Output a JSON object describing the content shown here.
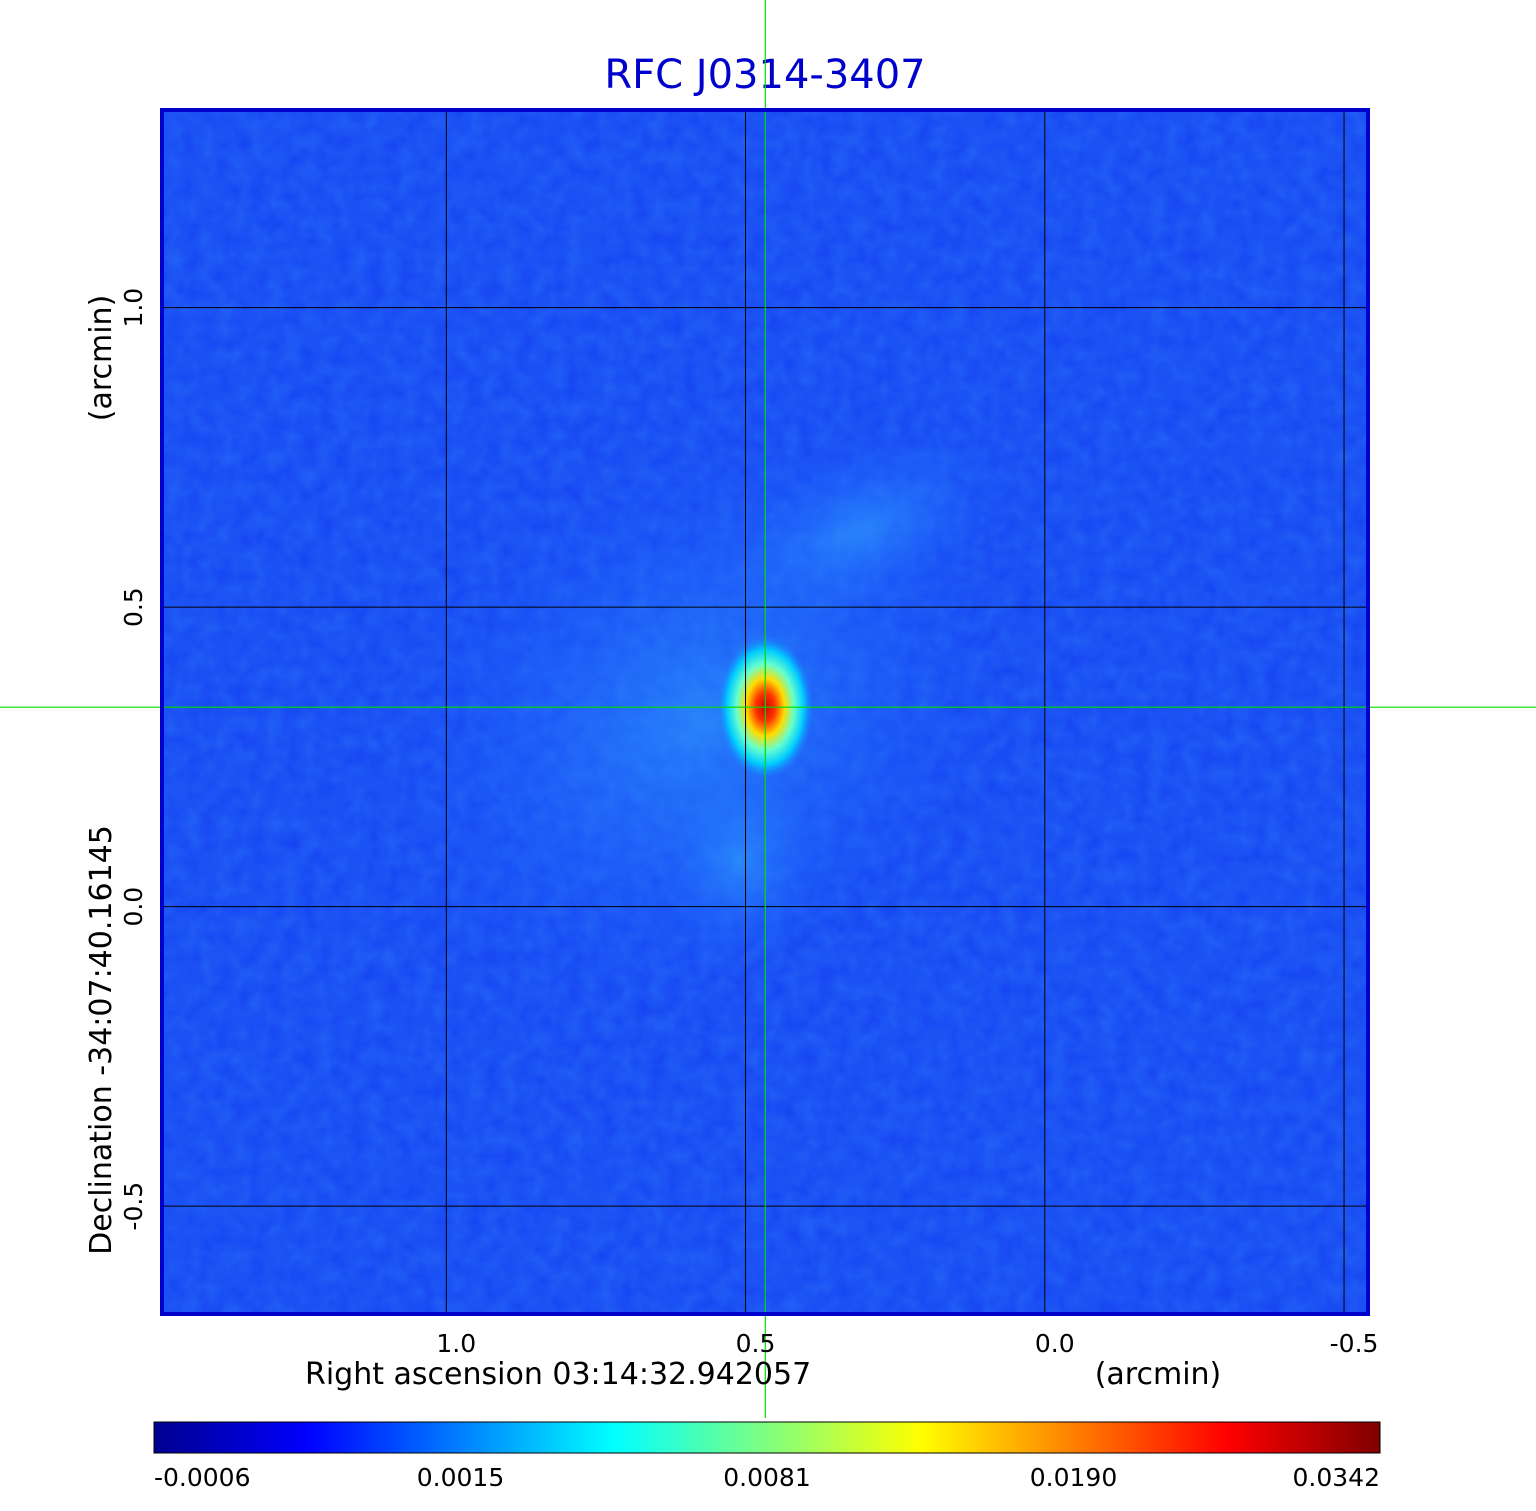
{
  "chart_data": {
    "type": "heatmap",
    "title": "RFC J0314-3407",
    "xlabel": "Right ascension  03:14:32.942057",
    "xlabel_unit": "(arcmin)",
    "ylabel": "Declination  -34:07:40.16145",
    "ylabel_unit": "(arcmin)",
    "x_ticks": [
      {
        "value": 1.0,
        "label": "1.0"
      },
      {
        "value": 0.5,
        "label": "0.5"
      },
      {
        "value": 0.0,
        "label": "0.0"
      },
      {
        "value": -0.5,
        "label": "-0.5"
      }
    ],
    "y_ticks": [
      {
        "value": 1.0,
        "label": "1.0"
      },
      {
        "value": 0.5,
        "label": "0.5"
      },
      {
        "value": 0.0,
        "label": "0.0"
      },
      {
        "value": -0.5,
        "label": "-0.5"
      }
    ],
    "xlim": [
      1.475,
      -0.54
    ],
    "ylim": [
      -0.68,
      1.33
    ],
    "grid": true,
    "crosshair": {
      "x": 0.467,
      "y": 0.333,
      "color": "#00dd00"
    },
    "source_peak": {
      "x": 0.467,
      "y": 0.333,
      "value": 0.0342
    },
    "colormap": "jet",
    "colorbar": {
      "orientation": "horizontal",
      "placement": "bottom",
      "ticks": [
        {
          "value": -0.0006,
          "label": "-0.0006"
        },
        {
          "value": 0.0015,
          "label": "0.0015"
        },
        {
          "value": 0.0081,
          "label": "0.0081"
        },
        {
          "value": 0.019,
          "label": "0.0190"
        },
        {
          "value": 0.0342,
          "label": "0.0342"
        }
      ],
      "range": [
        -0.0006,
        0.0342
      ]
    },
    "frame_color": "#0000cc",
    "grid_color": "#000000"
  }
}
